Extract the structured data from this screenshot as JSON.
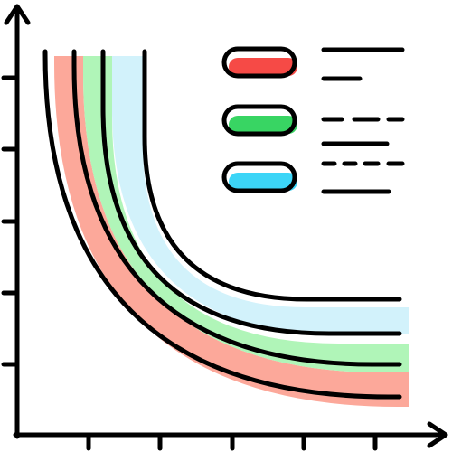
{
  "icon": {
    "name": "indifference-curves-chart-icon",
    "outline_color": "#000000",
    "band_colors": [
      "#fca89a",
      "#b0f5b8",
      "#d2f2fb"
    ],
    "legend_colors": [
      "#f64a46",
      "#38d563",
      "#3cd5f7"
    ],
    "legend_line_styles": [
      "solid",
      "dashed",
      "dotted"
    ]
  }
}
